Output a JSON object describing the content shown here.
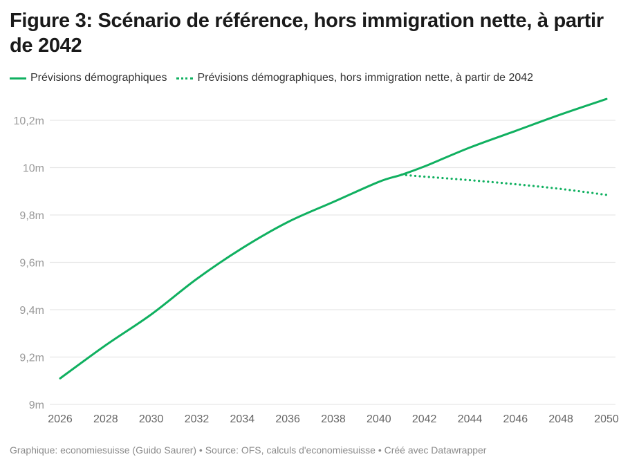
{
  "title": "Figure 3: Scénario de référence, hors immigration nette, à partir de 2042",
  "legend": [
    {
      "label": "Prévisions démographiques",
      "style": "solid"
    },
    {
      "label": "Prévisions démographiques, hors immigration nette, à partir de 2042",
      "style": "dotted"
    }
  ],
  "footer": "Graphique: economiesuisse (Guido Saurer) • Source: OFS, calculs d'economiesuisse • Créé avec Datawrapper",
  "colors": {
    "series": "#10b060",
    "grid": "#e6e6e6",
    "tick_text": "#999999",
    "xtick_text": "#666666"
  },
  "chart_data": {
    "type": "line",
    "title": "Figure 3: Scénario de référence, hors immigration nette, à partir de 2042",
    "xlabel": "",
    "ylabel": "",
    "xlim": [
      2026,
      2050
    ],
    "ylim": [
      9.0,
      10.3
    ],
    "yticks": [
      9.0,
      9.2,
      9.4,
      9.6,
      9.8,
      10.0,
      10.2
    ],
    "ytick_labels": [
      "9m",
      "9,2m",
      "9,4m",
      "9,6m",
      "9,8m",
      "10m",
      "10,2m"
    ],
    "xticks": [
      2026,
      2028,
      2030,
      2032,
      2034,
      2036,
      2038,
      2040,
      2042,
      2044,
      2046,
      2048,
      2050
    ],
    "xtick_labels": [
      "2026",
      "2028",
      "2030",
      "2032",
      "2034",
      "2036",
      "2038",
      "2040",
      "2042",
      "2044",
      "2046",
      "2048",
      "2050"
    ],
    "grid": true,
    "legend_position": "top-left",
    "series": [
      {
        "name": "Prévisions démographiques",
        "style": "solid",
        "x": [
          2026,
          2028,
          2030,
          2032,
          2034,
          2036,
          2038,
          2040,
          2041,
          2042,
          2044,
          2046,
          2048,
          2050
        ],
        "values": [
          9.11,
          9.25,
          9.38,
          9.53,
          9.66,
          9.77,
          9.855,
          9.94,
          9.97,
          10.005,
          10.085,
          10.155,
          10.225,
          10.29
        ]
      },
      {
        "name": "Prévisions démographiques, hors immigration nette, à partir de 2042",
        "style": "dotted",
        "x": [
          2041,
          2042,
          2044,
          2046,
          2048,
          2050
        ],
        "values": [
          9.97,
          9.962,
          9.947,
          9.93,
          9.91,
          9.885
        ]
      }
    ]
  }
}
